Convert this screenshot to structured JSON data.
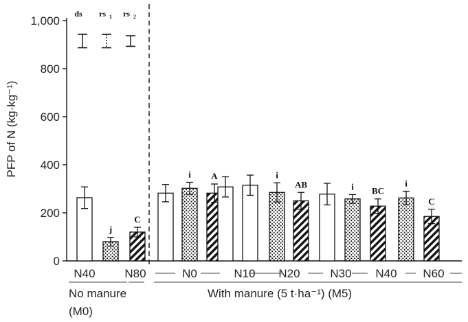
{
  "chart_data": {
    "type": "bar",
    "ylabel": "PFP of N (kg·kg⁻¹)",
    "ylim": [
      0,
      1000
    ],
    "yticks": [
      0,
      200,
      400,
      600,
      800,
      1000
    ],
    "ytick_labels": [
      "0",
      "200",
      "400",
      "600",
      "800",
      "1,000"
    ],
    "grid": false,
    "pattern_map": {
      "open": "white",
      "dotted": "dots",
      "hatched": "diagonal"
    },
    "groups": [
      {
        "label": "N40",
        "bars": [
          {
            "pattern": "open",
            "value": 263,
            "error": 45,
            "letter": ""
          }
        ]
      },
      {
        "label": "N80",
        "bars": [
          {
            "pattern": "dotted",
            "value": 80,
            "error": 18,
            "letter": "j"
          },
          {
            "pattern": "hatched",
            "value": 120,
            "error": 20,
            "letter": "C"
          }
        ]
      },
      {
        "label": "N0",
        "bars": [
          {
            "pattern": "open",
            "value": 282,
            "error": 36,
            "letter": ""
          },
          {
            "pattern": "dotted",
            "value": 302,
            "error": 25,
            "letter": "i"
          },
          {
            "pattern": "hatched",
            "value": 282,
            "error": 38,
            "letter": "A"
          }
        ]
      },
      {
        "label": "N10",
        "bars": [
          {
            "pattern": "open",
            "value": 308,
            "error": 42,
            "letter": ""
          },
          {
            "pattern": "open",
            "value": 315,
            "error": 42,
            "letter": ""
          }
        ]
      },
      {
        "label": "N20",
        "bars": [
          {
            "pattern": "dotted",
            "value": 285,
            "error": 40,
            "letter": "i"
          },
          {
            "pattern": "hatched",
            "value": 250,
            "error": 35,
            "letter": "AB"
          }
        ]
      },
      {
        "label": "N30",
        "bars": [
          {
            "pattern": "open",
            "value": 278,
            "error": 45,
            "letter": ""
          }
        ]
      },
      {
        "label": "N40",
        "bars": [
          {
            "pattern": "dotted",
            "value": 258,
            "error": 18,
            "letter": "i"
          },
          {
            "pattern": "hatched",
            "value": 228,
            "error": 30,
            "letter": "BC"
          }
        ]
      },
      {
        "label": "N60",
        "bars": [
          {
            "pattern": "dotted",
            "value": 262,
            "error": 28,
            "letter": "i"
          },
          {
            "pattern": "hatched",
            "value": 185,
            "error": 30,
            "letter": "C"
          }
        ]
      }
    ],
    "sections": [
      {
        "label_line1": "No manure",
        "label_line2": "(M0)"
      },
      {
        "label_line1": "With manure (5 t·ha⁻¹) (M5)",
        "label_line2": ""
      }
    ],
    "sig_bars": [
      {
        "label": "ds",
        "sub": "",
        "center": 915,
        "half": 28,
        "style": "solid"
      },
      {
        "label": "rs",
        "sub": "1",
        "center": 915,
        "half": 28,
        "style": "dotted"
      },
      {
        "label": "rs",
        "sub": "2",
        "center": 915,
        "half": 22,
        "style": "solid"
      }
    ]
  }
}
